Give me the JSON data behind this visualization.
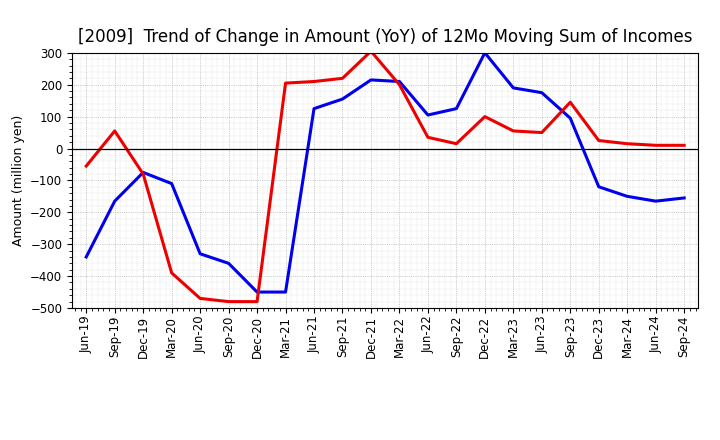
{
  "title": "[2009]  Trend of Change in Amount (YoY) of 12Mo Moving Sum of Incomes",
  "ylabel": "Amount (million yen)",
  "xlabels": [
    "Jun-19",
    "Sep-19",
    "Dec-19",
    "Mar-20",
    "Jun-20",
    "Sep-20",
    "Dec-20",
    "Mar-21",
    "Jun-21",
    "Sep-21",
    "Dec-21",
    "Mar-22",
    "Jun-22",
    "Sep-22",
    "Dec-22",
    "Mar-23",
    "Jun-23",
    "Sep-23",
    "Dec-23",
    "Mar-24",
    "Jun-24",
    "Sep-24"
  ],
  "ordinary_income": [
    -340,
    -165,
    -75,
    -110,
    -330,
    -360,
    -450,
    -450,
    125,
    155,
    215,
    210,
    105,
    125,
    300,
    190,
    175,
    95,
    -120,
    -150,
    -165,
    -155
  ],
  "net_income": [
    -55,
    55,
    -80,
    -390,
    -470,
    -480,
    -480,
    205,
    210,
    220,
    305,
    200,
    35,
    15,
    100,
    55,
    50,
    145,
    25,
    15,
    10,
    10
  ],
  "ylim": [
    -500,
    300
  ],
  "yticks": [
    -500,
    -400,
    -300,
    -200,
    -100,
    0,
    100,
    200,
    300
  ],
  "ordinary_color": "#0000EE",
  "net_color": "#EE0000",
  "bg_color": "#FFFFFF",
  "plot_bg_color": "#FFFFFF",
  "grid_color": "#888888",
  "title_fontsize": 12,
  "axis_fontsize": 8.5,
  "ylabel_fontsize": 9,
  "legend_fontsize": 10,
  "linewidth": 2.2
}
